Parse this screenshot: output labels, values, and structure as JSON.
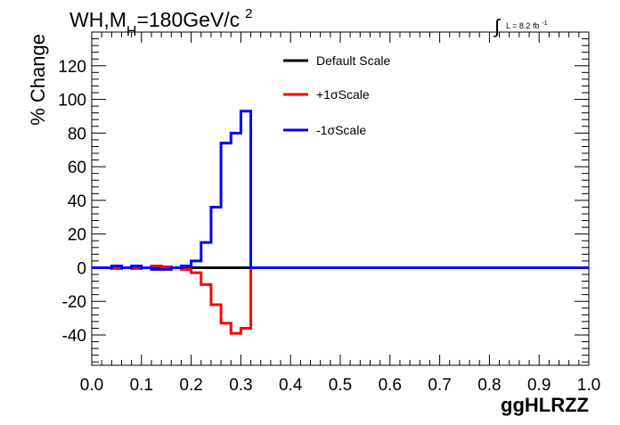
{
  "header": {
    "title_main": "WH,M",
    "title_sub": "H",
    "title_rest": "=180GeV/c",
    "title_sup": "2",
    "lumi_integral": "∫",
    "lumi_label": "L = 8.2 fb",
    "lumi_sup": "-1"
  },
  "chart_data": {
    "type": "line",
    "xlabel": "ggHLRZZ",
    "ylabel": "% Change",
    "xlim": [
      0.0,
      1.0
    ],
    "ylim": [
      -58,
      140
    ],
    "x_ticks": [
      0.0,
      0.1,
      0.2,
      0.3,
      0.4,
      0.5,
      0.6,
      0.7,
      0.8,
      0.9,
      1.0
    ],
    "x_tick_labels": [
      "0.0",
      "0.1",
      "0.2",
      "0.3",
      "0.4",
      "0.5",
      "0.6",
      "0.7",
      "0.8",
      "0.9",
      "1.0"
    ],
    "y_ticks": [
      -40,
      -20,
      0,
      20,
      40,
      60,
      80,
      100,
      120
    ],
    "y_tick_labels": [
      "-40",
      "-20",
      "0",
      "20",
      "40",
      "60",
      "80",
      "100",
      "120"
    ],
    "grid": false,
    "legend_placement": "top-center",
    "bin_edges": [
      0.0,
      0.02,
      0.04,
      0.06,
      0.08,
      0.1,
      0.12,
      0.14,
      0.16,
      0.18,
      0.2,
      0.22,
      0.24,
      0.26,
      0.28,
      0.3,
      0.32,
      0.34,
      0.36,
      0.38,
      0.4,
      0.42,
      0.44,
      0.46,
      0.48,
      0.5,
      0.52,
      0.54,
      0.56,
      0.58,
      0.6,
      0.62,
      0.64,
      0.66,
      0.68,
      0.7,
      0.72,
      0.74,
      0.76,
      0.78,
      0.8,
      0.82,
      0.84,
      0.86,
      0.88,
      0.9,
      0.92,
      0.94,
      0.96,
      0.98,
      1.0
    ],
    "series": [
      {
        "name": "Default Scale",
        "color": "#000000",
        "values": [
          0,
          0,
          0,
          0,
          0,
          0,
          0,
          0,
          0,
          0,
          0,
          0,
          0,
          0,
          0,
          0,
          0,
          0,
          0,
          0,
          0,
          0,
          0,
          0,
          0,
          0,
          0,
          0,
          0,
          0,
          0,
          0,
          0,
          0,
          0,
          0,
          0,
          0,
          0,
          0,
          0,
          0,
          0,
          0,
          0,
          0,
          0,
          0,
          0,
          0
        ]
      },
      {
        "name": "+1σScale",
        "color": "#ff0000",
        "values": [
          0,
          0,
          -0.5,
          0,
          -0.5,
          0,
          1,
          0.5,
          0,
          -1,
          -3,
          -10,
          -22,
          -33,
          -39,
          -36,
          0,
          0,
          0,
          0,
          0,
          0,
          0,
          0,
          0,
          0,
          0,
          0,
          0,
          0,
          0,
          0,
          0,
          0,
          0,
          0,
          0,
          0,
          0,
          0,
          0,
          0,
          0,
          0,
          0,
          0,
          0,
          0,
          0,
          0
        ]
      },
      {
        "name": "-1σScale",
        "color": "#0000ff",
        "values": [
          0,
          0,
          1,
          0,
          1,
          0,
          -1,
          -1,
          0,
          1,
          4,
          15,
          36,
          74,
          80,
          93,
          0,
          0,
          0,
          0,
          0,
          0,
          0,
          0,
          0,
          0,
          0,
          0,
          0,
          0,
          0,
          0,
          0,
          0,
          0,
          0,
          0,
          0,
          0,
          0,
          0,
          0,
          0,
          0,
          0,
          0,
          0,
          0,
          0,
          0
        ]
      }
    ]
  }
}
